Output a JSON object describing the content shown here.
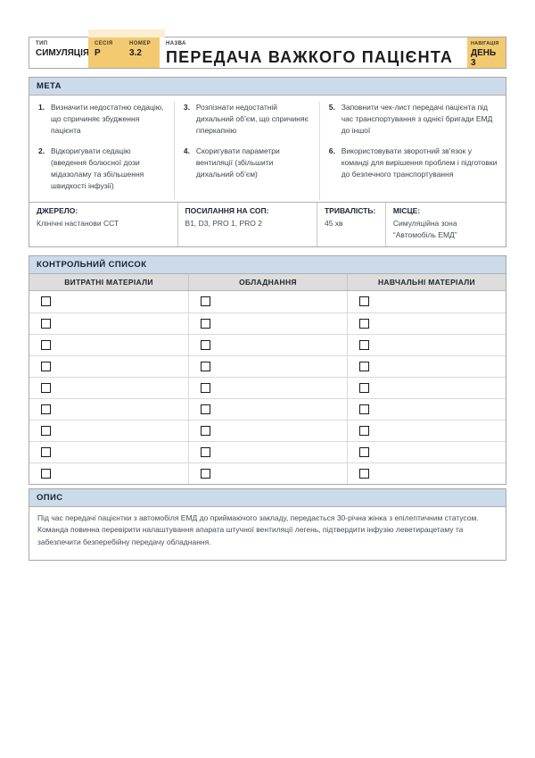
{
  "header": {
    "type_label": "ТИП",
    "type_value": "СИМУЛЯЦІЯ",
    "session_label": "СЕСІЯ",
    "session_value": "Р",
    "number_label": "НОМЕР",
    "number_value": "3.2",
    "name_label": "НАЗВА",
    "title": "ПЕРЕДАЧА ВАЖКОГО ПАЦІЄНТА",
    "nav_label": "НАВІГАЦІЯ",
    "nav_value": "ДЕНЬ 3"
  },
  "goal": {
    "heading": "МЕТА",
    "items": [
      {
        "num": "1.",
        "text": "Визначити недостатню седацію, що спричиняє збудження пацієнта"
      },
      {
        "num": "2.",
        "text": "Відкоригувати седацію (введення болюсної дози мідазоламу та збільшення швидкості інфузії)"
      },
      {
        "num": "3.",
        "text": "Розпізнати недостатній дихальний об’єм, що спричиняє гіперкапнію"
      },
      {
        "num": "4.",
        "text": "Скоригувати параметри вентиляції (збільшити дихальний об’єм)"
      },
      {
        "num": "5.",
        "text": "Заповнити чек-лист передачі пацієнта під час транспортування з однієї бригади ЕМД до іншої"
      },
      {
        "num": "6.",
        "text": "Використовувати зворотний зв’язок у команді для вирішення проблем і підготовки до безпечного транспортування"
      }
    ],
    "meta_row": [
      {
        "label": "ДЖЕРЕЛО:",
        "value": "Клінічні настанови ССТ"
      },
      {
        "label": "ПОСИЛАННЯ НА СОП:",
        "value": "B1, D3, PRO 1, PRO 2"
      },
      {
        "label": "ТРИВАЛІСТЬ:",
        "value": "45 хв"
      },
      {
        "label": "МІСЦЕ:",
        "value": "Симуляційна зона “Автомобіль ЕМД”"
      }
    ]
  },
  "checklist": {
    "heading": "КОНТРОЛЬНИЙ СПИСОК",
    "columns": [
      "ВИТРАТНІ МАТЕРІАЛИ",
      "ОБЛАДНАННЯ",
      "НАВЧАЛЬНІ МАТЕРІАЛИ"
    ],
    "rows": 9
  },
  "description": {
    "heading": "ОПИС",
    "text": "Під час передачі пацієнтки з автомобіля ЕМД до приймаючого закладу, передається 30-річна жінка з епілептичним статусом. Команда повинна перевірити налаштування апарата штучної вентиляції легень, підтвердити інфузію леветирацетаму та забезпечити безперебійну передачу обладнання."
  },
  "colors": {
    "accent_yellow": "#f3ca70",
    "section_blue": "#ccdbe9",
    "column_gray": "#dddddd"
  }
}
